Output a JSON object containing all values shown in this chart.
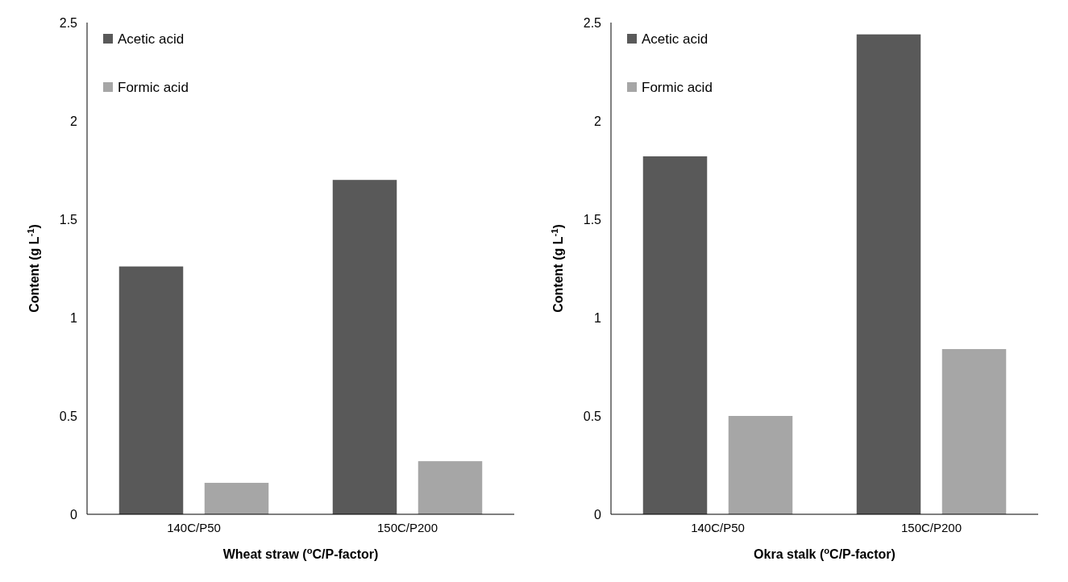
{
  "chart_data": [
    {
      "type": "bar",
      "xlabel": "Wheat straw ($^{o}$C/P-factor)",
      "ylabel": "Content (g L$^{-1}$)",
      "categories": [
        "140C/P50",
        "150C/P200"
      ],
      "series": [
        {
          "name": "Acetic acid",
          "color": "#595959",
          "values": [
            1.26,
            1.7
          ]
        },
        {
          "name": "Formic acid",
          "color": "#a6a6a6",
          "values": [
            0.16,
            0.27
          ]
        }
      ],
      "ylim": [
        0,
        2.5
      ],
      "yticks": [
        0,
        0.5,
        1,
        1.5,
        2,
        2.5
      ],
      "legend": "top left"
    },
    {
      "type": "bar",
      "xlabel": "Okra stalk ($^{o}$C/P-factor)",
      "ylabel": "Content (g L$^{-1}$)",
      "categories": [
        "140C/P50",
        "150C/P200"
      ],
      "series": [
        {
          "name": "Acetic acid",
          "color": "#595959",
          "values": [
            1.82,
            2.44
          ]
        },
        {
          "name": "Formic acid",
          "color": "#a6a6a6",
          "values": [
            0.5,
            0.84
          ]
        }
      ],
      "ylim": [
        0,
        2.5
      ],
      "yticks": [
        0,
        0.5,
        1,
        1.5,
        2,
        2.5
      ],
      "legend": "top left"
    }
  ]
}
